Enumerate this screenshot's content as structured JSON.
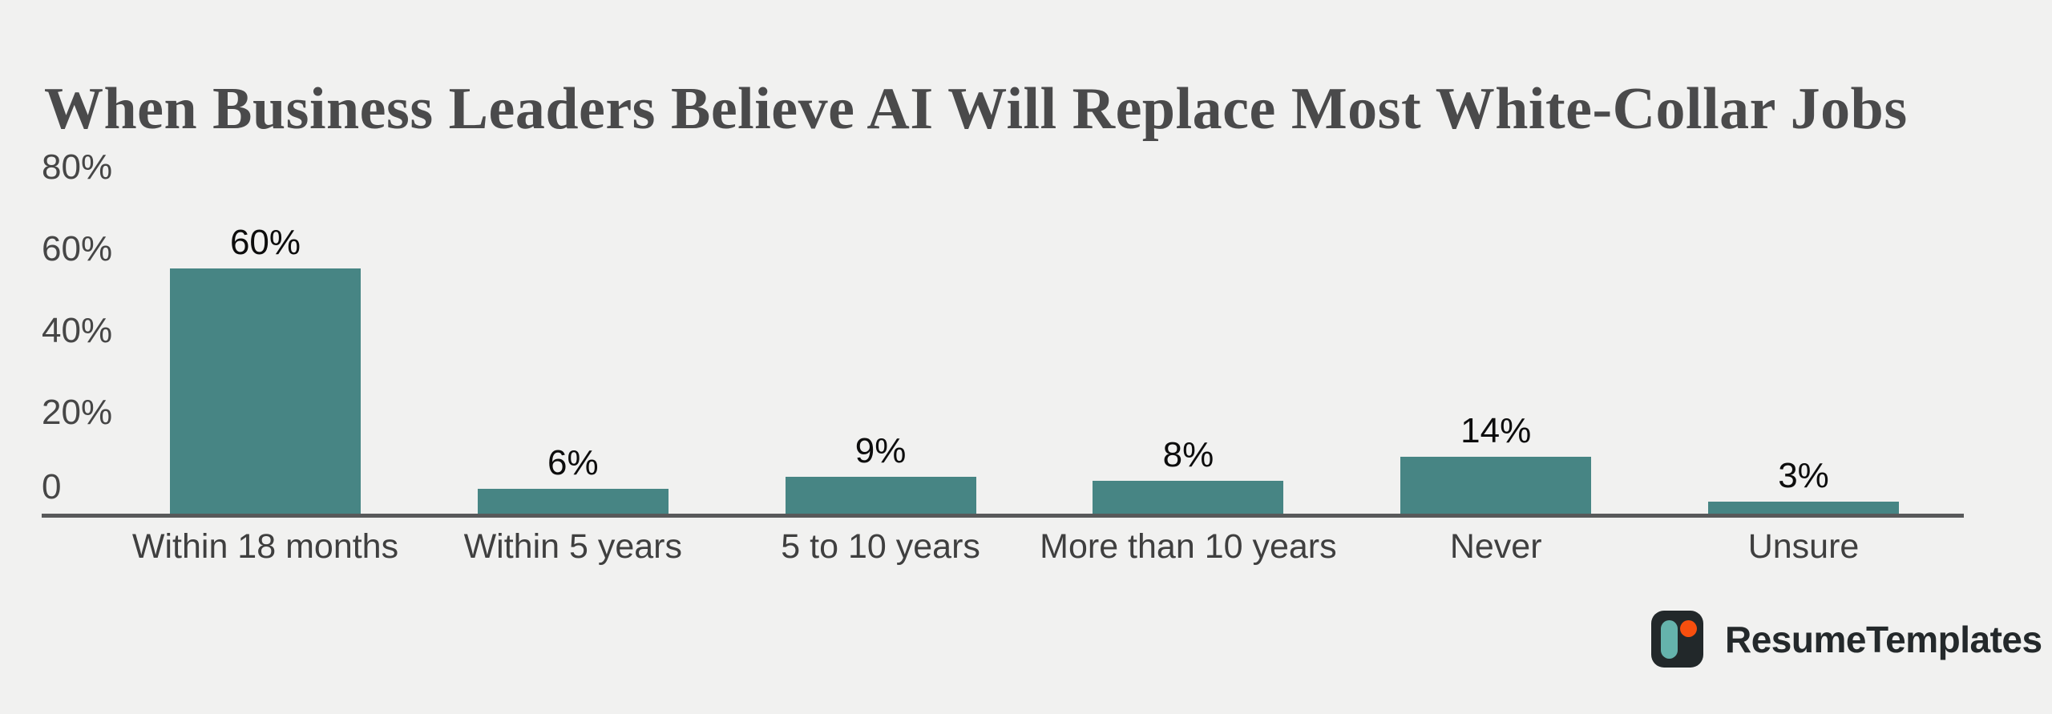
{
  "title": "When Business Leaders Believe AI Will Replace Most White-Collar Jobs",
  "chart_data": {
    "type": "bar",
    "title": "When Business Leaders Believe AI Will Replace Most White-Collar Jobs",
    "categories": [
      "Within 18 months",
      "Within 5 years",
      "5 to 10 years",
      "More than 10 years",
      "Never",
      "Unsure"
    ],
    "values": [
      60,
      6,
      9,
      8,
      14,
      3
    ],
    "value_labels": [
      "60%",
      "6%",
      "9%",
      "8%",
      "14%",
      "3%"
    ],
    "xlabel": "",
    "ylabel": "",
    "ylim": [
      0,
      80
    ],
    "y_ticks": [
      "80%",
      "60%",
      "40%",
      "20%",
      "0"
    ],
    "grid": false,
    "legend": false,
    "bar_color": "#478584"
  },
  "branding": {
    "logo_text": "ResumeTemplates"
  },
  "colors": {
    "background": "#f1f1f0",
    "bar": "#478584",
    "axis_line": "#58595a",
    "title_text": "#4a4a4b",
    "tick_text": "#464646",
    "category_text": "#3f3f3f",
    "value_text": "#0d0d0d",
    "logo_dark": "#22282a",
    "logo_teal": "#65b3ac",
    "logo_orange": "#f84f0e"
  }
}
